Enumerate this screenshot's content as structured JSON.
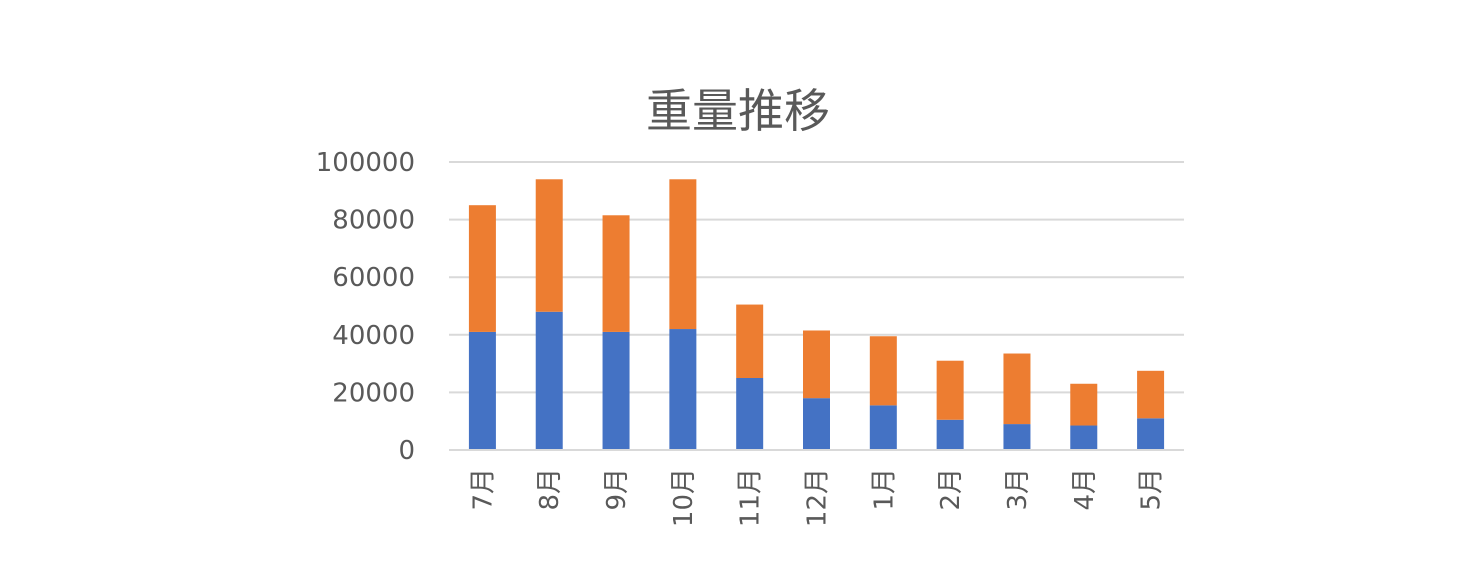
{
  "chart_data": {
    "type": "bar",
    "stacked": true,
    "title": "重量推移",
    "xlabel": "",
    "ylabel": "",
    "categories": [
      "7月",
      "8月",
      "9月",
      "10月",
      "11月",
      "12月",
      "1月",
      "2月",
      "3月",
      "4月",
      "5月"
    ],
    "series": [
      {
        "values": [
          41000,
          48000,
          41000,
          42000,
          25000,
          18000,
          15500,
          10500,
          9000,
          8500,
          11000
        ],
        "color": "#4472c4"
      },
      {
        "values": [
          44000,
          46000,
          40500,
          52000,
          25500,
          23500,
          24000,
          20500,
          24500,
          14500,
          16500
        ],
        "color": "#ed7d31"
      }
    ],
    "ylim": [
      0,
      100000
    ],
    "yticks": [
      "0",
      "20000",
      "40000",
      "60000",
      "80000",
      "100000"
    ],
    "grid": true,
    "legend": "none"
  }
}
